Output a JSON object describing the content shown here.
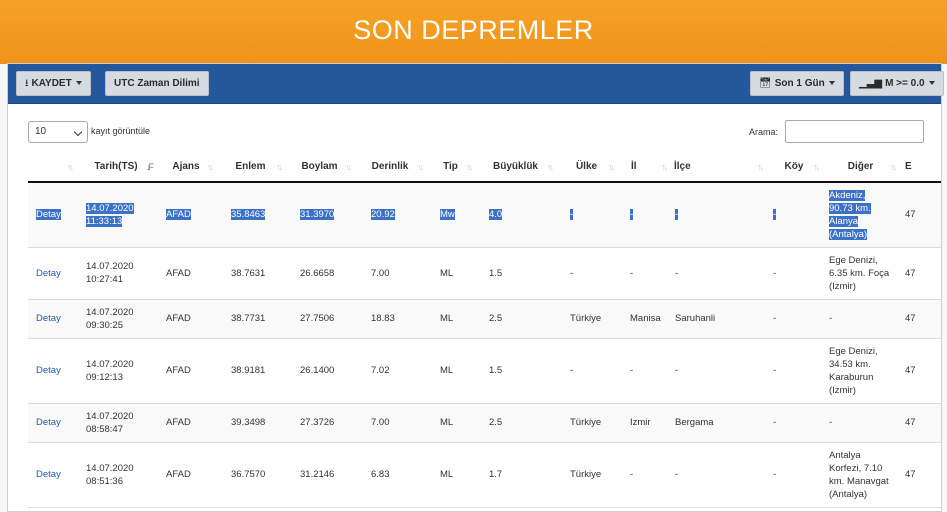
{
  "page": {
    "title": "SON DEPREMLER"
  },
  "toolbar": {
    "save_label": "KAYDET",
    "utc_label": "UTC Zaman Dilimi",
    "period_label": "Son 1 Gün",
    "magnitude_label": "M >= 0.0",
    "icons": {
      "save": "download-icon",
      "period": "calendar-icon",
      "magnitude": "bar-chart-icon"
    }
  },
  "controls": {
    "length_value": "10",
    "length_label": "kayıt görüntüle",
    "search_label": "Arama:",
    "search_value": ""
  },
  "table": {
    "columns": [
      "",
      "Tarih(TS)",
      "Ajans",
      "Enlem",
      "Boylam",
      "Derinlik",
      "Tip",
      "Büyüklük",
      "Ülke",
      "İl",
      "İlçe",
      "Köy",
      "Diğer",
      "E"
    ],
    "rows": [
      {
        "detail": "Detay",
        "date": "14.07.2020",
        "time": "11:33:13",
        "agency": "AFAD",
        "lat": "35.8463",
        "lon": "31.3970",
        "depth": "20.92",
        "type": "Mw",
        "mag": "4.0",
        "country": "-",
        "province": "-",
        "district": "-",
        "village": "-",
        "other": [
          "Akdeniz,",
          "90.73 km.",
          "Alanya",
          "(Antalya)"
        ],
        "extra": "47"
      },
      {
        "detail": "Detay",
        "date": "14.07.2020",
        "time": "10:27:41",
        "agency": "AFAD",
        "lat": "38.7631",
        "lon": "26.6658",
        "depth": "7.00",
        "type": "ML",
        "mag": "1.5",
        "country": "-",
        "province": "-",
        "district": "-",
        "village": "-",
        "other": [
          "Ege Denizi,",
          "6.35 km. Foça",
          "(Izmir)"
        ],
        "extra": "47"
      },
      {
        "detail": "Detay",
        "date": "14.07.2020",
        "time": "09:30:25",
        "agency": "AFAD",
        "lat": "38.7731",
        "lon": "27.7506",
        "depth": "18.83",
        "type": "ML",
        "mag": "2.5",
        "country": "Türkiye",
        "province": "Manisa",
        "district": "Saruhanli",
        "village": "-",
        "other": [
          "-"
        ],
        "extra": "47"
      },
      {
        "detail": "Detay",
        "date": "14.07.2020",
        "time": "09:12:13",
        "agency": "AFAD",
        "lat": "38.9181",
        "lon": "26.1400",
        "depth": "7.02",
        "type": "ML",
        "mag": "1.5",
        "country": "-",
        "province": "-",
        "district": "-",
        "village": "-",
        "other": [
          "Ege Denizi,",
          "34.53 km.",
          "Karaburun",
          "(Izmir)"
        ],
        "extra": "47"
      },
      {
        "detail": "Detay",
        "date": "14.07.2020",
        "time": "08:58:47",
        "agency": "AFAD",
        "lat": "39.3498",
        "lon": "27.3726",
        "depth": "7.00",
        "type": "ML",
        "mag": "2.5",
        "country": "Türkiye",
        "province": "Izmir",
        "district": "Bergama",
        "village": "-",
        "other": [
          "-"
        ],
        "extra": "47"
      },
      {
        "detail": "Detay",
        "date": "14.07.2020",
        "time": "08:51:36",
        "agency": "AFAD",
        "lat": "36.7570",
        "lon": "31.2146",
        "depth": "6.83",
        "type": "ML",
        "mag": "1.7",
        "country": "Türkiye",
        "province": "-",
        "district": "-",
        "village": "-",
        "other": [
          "Antalya",
          "Korfezi, 7.10",
          "km. Manavgat",
          "(Antalya)"
        ],
        "extra": "47"
      }
    ]
  }
}
